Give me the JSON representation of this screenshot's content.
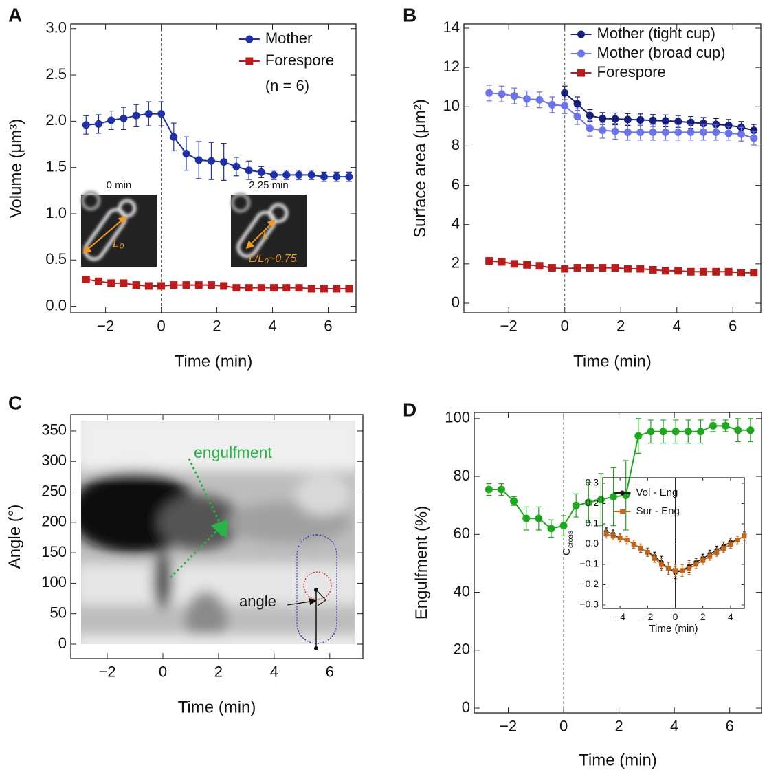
{
  "chart_data": [
    {
      "type": "line",
      "panel": "A",
      "xlabel": "Time (min)",
      "ylabel": "Volume (μm³)",
      "x": [
        -2.7,
        -2.25,
        -1.8,
        -1.35,
        -0.9,
        -0.45,
        0,
        0.45,
        0.9,
        1.35,
        1.8,
        2.25,
        2.7,
        3.15,
        3.6,
        4.05,
        4.5,
        4.95,
        5.4,
        5.85,
        6.3,
        6.75
      ],
      "series": [
        {
          "name": "Mother",
          "color": "#1f2fa8",
          "marker": "circle",
          "values": [
            1.96,
            1.97,
            2.01,
            2.03,
            2.06,
            2.08,
            2.08,
            1.83,
            1.65,
            1.58,
            1.57,
            1.56,
            1.51,
            1.47,
            1.45,
            1.42,
            1.42,
            1.42,
            1.42,
            1.4,
            1.4,
            1.4
          ],
          "errors": [
            0.1,
            0.1,
            0.1,
            0.12,
            0.12,
            0.13,
            0.13,
            0.15,
            0.18,
            0.2,
            0.2,
            0.2,
            0.1,
            0.1,
            0.06,
            0.05,
            0.05,
            0.05,
            0.05,
            0.05,
            0.05,
            0.05
          ]
        },
        {
          "name": "Forespore",
          "color": "#b81c1c",
          "marker": "square",
          "values": [
            0.29,
            0.27,
            0.25,
            0.25,
            0.23,
            0.22,
            0.22,
            0.23,
            0.23,
            0.23,
            0.23,
            0.22,
            0.2,
            0.2,
            0.2,
            0.2,
            0.2,
            0.2,
            0.19,
            0.19,
            0.19,
            0.19
          ]
        }
      ],
      "legend": "upper right",
      "legend_note": "(n = 6)",
      "annotations": [
        "0 min",
        "2.25 min",
        "L₀",
        "L",
        "L/L₀~0.75"
      ],
      "vline": 0,
      "xlim": [
        -3.25,
        7.0
      ],
      "ylim": [
        -0.07,
        3.05
      ],
      "xticks": [
        {
          "value": -2,
          "label": "−2"
        },
        0,
        2,
        4,
        6
      ],
      "yticks": [
        {
          "value": 0,
          "label": "0.0"
        },
        {
          "value": 0.5,
          "label": "0.5"
        },
        {
          "value": 1,
          "label": "1.0"
        },
        {
          "value": 1.5,
          "label": "1.5"
        },
        {
          "value": 2,
          "label": "2.0"
        },
        {
          "value": 2.5,
          "label": "2.5"
        },
        {
          "value": 3,
          "label": "3.0"
        }
      ]
    },
    {
      "type": "line",
      "panel": "B",
      "xlabel": "Time (min)",
      "ylabel": "Surface area (μm²)",
      "x": [
        -2.7,
        -2.25,
        -1.8,
        -1.35,
        -0.9,
        -0.45,
        0,
        0.45,
        0.9,
        1.35,
        1.8,
        2.25,
        2.7,
        3.15,
        3.6,
        4.05,
        4.5,
        4.95,
        5.4,
        5.85,
        6.3,
        6.75
      ],
      "series": [
        {
          "name": "Mother (tight cup)",
          "color": "#16207a",
          "marker": "circle",
          "values": [
            null,
            null,
            null,
            null,
            null,
            null,
            10.7,
            10.15,
            9.55,
            9.4,
            9.38,
            9.35,
            9.33,
            9.3,
            9.28,
            9.25,
            9.2,
            9.15,
            9.1,
            9.05,
            8.95,
            8.8
          ],
          "errors": [
            null,
            null,
            null,
            null,
            null,
            null,
            0.35,
            0.35,
            0.3,
            0.3,
            0.3,
            0.3,
            0.3,
            0.3,
            0.3,
            0.3,
            0.3,
            0.3,
            0.3,
            0.3,
            0.3,
            0.3
          ]
        },
        {
          "name": "Mother (broad cup)",
          "color": "#6b74ea",
          "marker": "circle",
          "values": [
            10.7,
            10.65,
            10.55,
            10.4,
            10.35,
            10.1,
            10.05,
            9.5,
            8.9,
            8.8,
            8.75,
            8.7,
            8.7,
            8.7,
            8.7,
            8.7,
            8.7,
            8.7,
            8.7,
            8.65,
            8.6,
            8.4
          ],
          "errors": [
            0.4,
            0.4,
            0.4,
            0.4,
            0.4,
            0.4,
            0.4,
            0.4,
            0.4,
            0.4,
            0.4,
            0.4,
            0.4,
            0.4,
            0.4,
            0.4,
            0.4,
            0.4,
            0.4,
            0.35,
            0.35,
            0.35
          ]
        },
        {
          "name": "Forespore",
          "color": "#b81c1c",
          "marker": "square",
          "values": [
            2.15,
            2.1,
            2.0,
            1.95,
            1.9,
            1.8,
            1.75,
            1.8,
            1.8,
            1.8,
            1.8,
            1.75,
            1.75,
            1.7,
            1.65,
            1.65,
            1.6,
            1.6,
            1.6,
            1.6,
            1.55,
            1.55
          ]
        }
      ],
      "legend": "upper center",
      "vline": 0,
      "xlim": [
        -3.6,
        7.0
      ],
      "ylim": [
        -0.49,
        14.21
      ],
      "xticks": [
        {
          "value": -2,
          "label": "−2"
        },
        0,
        2,
        4,
        6
      ],
      "yticks": [
        0,
        2,
        4,
        6,
        8,
        10,
        12,
        14
      ]
    },
    {
      "type": "image",
      "panel": "C",
      "xlabel": "Time (min)",
      "ylabel": "Angle (°)",
      "annotations": [
        "engulfment",
        "angle"
      ],
      "xlim": [
        -3.31,
        7.19
      ],
      "ylim": [
        -23.7,
        377
      ],
      "xticks": [
        {
          "value": -2,
          "label": "−2"
        },
        0,
        2,
        4,
        6
      ],
      "yticks": [
        0,
        50,
        100,
        150,
        200,
        250,
        300,
        350
      ]
    },
    {
      "type": "line",
      "panel": "D",
      "xlabel": "Time (min)",
      "ylabel": "Engulfment (%)",
      "x": [
        -2.7,
        -2.25,
        -1.8,
        -1.35,
        -0.9,
        -0.45,
        0,
        0.45,
        0.9,
        1.35,
        1.8,
        2.25,
        2.7,
        3.15,
        3.6,
        4.05,
        4.5,
        4.95,
        5.4,
        5.85,
        6.3,
        6.75
      ],
      "series": [
        {
          "color": "#1ea81e",
          "marker": "circle",
          "values": [
            75.5,
            75.5,
            71.5,
            65.5,
            65.5,
            62,
            63,
            70,
            71,
            72,
            73,
            73.5,
            94,
            95.5,
            95.5,
            95.5,
            95.5,
            95.5,
            97.5,
            97.5,
            96,
            96
          ],
          "errors": [
            2,
            2,
            1.5,
            4,
            4,
            3,
            3.5,
            4,
            7,
            9,
            10,
            12,
            6,
            4,
            4,
            4,
            4,
            4,
            2,
            2,
            4,
            4
          ]
        }
      ],
      "vline": 0,
      "xlim": [
        -3.23,
        7.15
      ],
      "ylim": [
        -1.66,
        102.1
      ],
      "xticks": [
        {
          "value": -2,
          "label": "−2"
        },
        0,
        2,
        4,
        6
      ],
      "yticks": [
        0,
        20,
        40,
        60,
        80,
        100
      ]
    },
    {
      "type": "line",
      "xlabel": "Time (min)",
      "ylabel": "C",
      "ylabel_subscript": "cross",
      "x": [
        -5,
        -4.5,
        -4,
        -3.5,
        -3,
        -2.5,
        -2,
        -1.5,
        -1,
        -0.5,
        0,
        0.5,
        1,
        1.5,
        2,
        2.5,
        3,
        3.5,
        4,
        4.5,
        5
      ],
      "series": [
        {
          "name": "Vol - Eng",
          "color": "#1a1a1a",
          "marker": "circle",
          "values": [
            0.06,
            0.05,
            0.03,
            0.02,
            0.0,
            -0.02,
            -0.04,
            -0.06,
            -0.09,
            -0.12,
            -0.14,
            -0.13,
            -0.11,
            -0.09,
            -0.07,
            -0.05,
            -0.03,
            -0.01,
            0.01,
            0.02,
            0.04
          ],
          "errors": [
            0.02,
            0.02,
            0.02,
            0.02,
            0.02,
            0.02,
            0.02,
            0.02,
            0.03,
            0.03,
            0.03,
            0.03,
            0.03,
            0.02,
            0.02,
            0.02,
            0.02,
            0.02,
            0.02,
            0.02,
            0.02
          ]
        },
        {
          "name": "Sur - Eng",
          "color": "#c0661a",
          "marker": "square",
          "values": [
            0.05,
            0.04,
            0.03,
            0.02,
            0.0,
            -0.02,
            -0.04,
            -0.07,
            -0.1,
            -0.12,
            -0.13,
            -0.13,
            -0.12,
            -0.1,
            -0.08,
            -0.06,
            -0.04,
            -0.02,
            0.0,
            0.02,
            0.04
          ],
          "errors": [
            0.02,
            0.02,
            0.02,
            0.02,
            0.02,
            0.02,
            0.02,
            0.02,
            0.03,
            0.03,
            0.03,
            0.03,
            0.03,
            0.02,
            0.02,
            0.02,
            0.02,
            0.02,
            0.02,
            0.02,
            0.02
          ]
        }
      ],
      "legend": "top",
      "zero_lines": true,
      "xlim": [
        -5.25,
        5.0
      ],
      "ylim": [
        -0.317,
        0.327
      ],
      "xticks": [
        {
          "value": -4,
          "label": "−4"
        },
        {
          "value": -2,
          "label": "−2"
        },
        0,
        2,
        4
      ],
      "yticks": [
        {
          "value": -0.3,
          "label": "−0.3"
        },
        {
          "value": -0.2,
          "label": "−0.2"
        },
        {
          "value": -0.1,
          "label": "−0.1"
        },
        {
          "value": 0,
          "label": "0.0"
        },
        0.1,
        0.2,
        0.3
      ]
    }
  ]
}
